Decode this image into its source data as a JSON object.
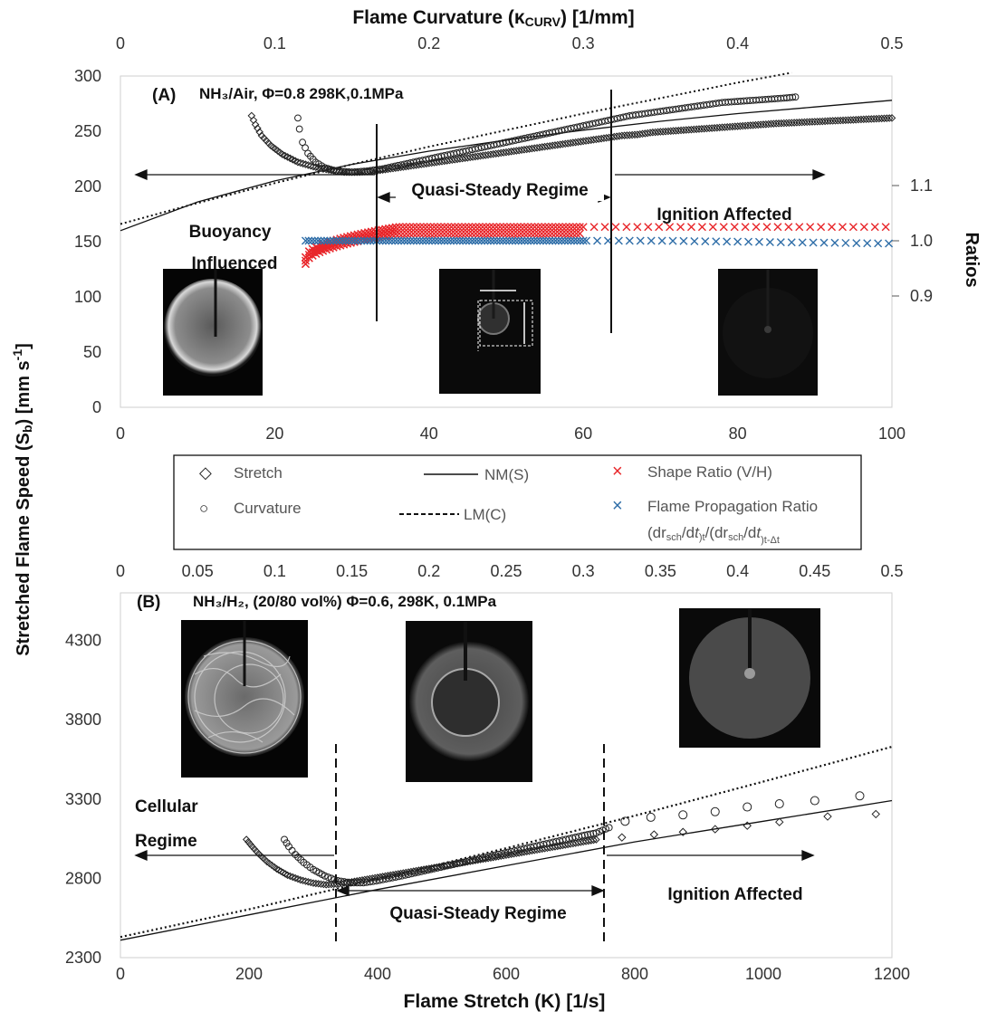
{
  "figure": {
    "top_axis_title": "Flame Curvature (κ",
    "top_axis_title_sub": "CURV",
    "top_axis_title_end": ") [1/mm]",
    "y_title": "Stretched Flame Speed (S",
    "y_title_sub": "b",
    "y_title_mid": ") [mm s",
    "y_title_sup": "-1",
    "y_title_end": "]",
    "x_title": "Flame Stretch (K) [1/s]",
    "right_title": "Ratios"
  },
  "legend": {
    "stretch": "Stretch",
    "curvature": "Curvature",
    "nm": "NM(S)",
    "lm": "LM(C)",
    "shape": "Shape Ratio (V/H)",
    "fpr": "Flame Propagation Ratio",
    "fpr_formula": "(dr_sch/dt)_t/(dr_sch/dt)_t-Δt",
    "marker_stretch": "◇",
    "marker_curv": "○",
    "marker_x": "×"
  },
  "colors": {
    "shape_ratio": "#e8262a",
    "propagation_ratio": "#2f6ea8",
    "data": "#222222"
  },
  "chart_data": [
    {
      "id": "A",
      "type": "scatter",
      "label": "(A)",
      "condition": "NH₃/Air, Φ=0.8 298K,0.1MPa",
      "xlabel": "",
      "ylabel": "Stretched Flame Speed (Sb) [mm s-1]",
      "xlim": [
        0,
        100
      ],
      "ylim": [
        0,
        300
      ],
      "x_ticks": [
        0,
        20,
        40,
        60,
        80,
        100
      ],
      "y_ticks": [
        0,
        50,
        100,
        150,
        200,
        250,
        300
      ],
      "top_axis": {
        "label": "Flame Curvature (κCURV) [1/mm]",
        "lim": [
          0,
          0.5
        ],
        "ticks": [
          "0",
          "0.1",
          "0.2",
          "0.3",
          "0.4",
          "0.5"
        ]
      },
      "right_axis": {
        "label": "Ratios",
        "ticks": [
          "0.9",
          "1.0",
          "1.1"
        ],
        "lim": [
          0.75,
          1.25
        ]
      },
      "grid": false,
      "regimes": [
        {
          "text": "Buoyancy",
          "text2": "Influenced"
        },
        {
          "text": "Quasi-Steady Regime"
        },
        {
          "text": "Ignition Affected"
        }
      ],
      "boundaries_x": [
        33,
        63.5
      ],
      "images": [
        {
          "name": "buoyancy-flame-image",
          "dim": "V",
          "dim2": "H"
        },
        {
          "name": "quasi-steady-flame-image"
        },
        {
          "name": "ignition-flame-image"
        }
      ],
      "stretch_points": [
        [
          17,
          264
        ],
        [
          17.5,
          256
        ],
        [
          18.3,
          246
        ],
        [
          19.5,
          237
        ],
        [
          21,
          229
        ],
        [
          23,
          222
        ],
        [
          25,
          218
        ],
        [
          27,
          215
        ],
        [
          29,
          213
        ],
        [
          31,
          213
        ],
        [
          33,
          214
        ],
        [
          35,
          216
        ],
        [
          37,
          218
        ],
        [
          39,
          220
        ],
        [
          41,
          222
        ],
        [
          43,
          224
        ],
        [
          45,
          226
        ],
        [
          47,
          228
        ],
        [
          49,
          230
        ],
        [
          51,
          232
        ],
        [
          53,
          234
        ],
        [
          55,
          236
        ],
        [
          57,
          238
        ],
        [
          59,
          240
        ],
        [
          61,
          242
        ],
        [
          63,
          244
        ],
        [
          65,
          246
        ],
        [
          67,
          247
        ],
        [
          69,
          249
        ],
        [
          71,
          250
        ],
        [
          73,
          251
        ],
        [
          75,
          252
        ],
        [
          77,
          253
        ],
        [
          79,
          254
        ],
        [
          81,
          255
        ],
        [
          83,
          256
        ],
        [
          85,
          257
        ],
        [
          88,
          258
        ],
        [
          91,
          259
        ],
        [
          94,
          260
        ],
        [
          97,
          261
        ],
        [
          100,
          262
        ]
      ],
      "curvature_points": [
        [
          23,
          262
        ],
        [
          23.2,
          252
        ],
        [
          23.6,
          240
        ],
        [
          24.3,
          230
        ],
        [
          25.3,
          222
        ],
        [
          26.5,
          217
        ],
        [
          28,
          214
        ],
        [
          30,
          213
        ],
        [
          32,
          214
        ],
        [
          34,
          216
        ],
        [
          36,
          219
        ],
        [
          38,
          222
        ],
        [
          40,
          225
        ],
        [
          42,
          228
        ],
        [
          44,
          231
        ],
        [
          46,
          234
        ],
        [
          48,
          237
        ],
        [
          50,
          240
        ],
        [
          52,
          243
        ],
        [
          54,
          246
        ],
        [
          56,
          249
        ],
        [
          58,
          252
        ],
        [
          60,
          255
        ],
        [
          62,
          258
        ],
        [
          64,
          261
        ],
        [
          66,
          264
        ],
        [
          68,
          266
        ],
        [
          70,
          268
        ],
        [
          72,
          270
        ],
        [
          74,
          272
        ],
        [
          76,
          274
        ],
        [
          78,
          276
        ],
        [
          80,
          277
        ],
        [
          82,
          278
        ],
        [
          84,
          279
        ],
        [
          86,
          280
        ],
        [
          87.5,
          281
        ]
      ],
      "nm_line": [
        [
          0,
          160
        ],
        [
          10,
          186
        ],
        [
          20,
          205
        ],
        [
          30,
          220
        ],
        [
          40,
          232
        ],
        [
          50,
          242
        ],
        [
          60,
          251
        ],
        [
          70,
          259
        ],
        [
          80,
          266
        ],
        [
          90,
          272
        ],
        [
          100,
          278
        ]
      ],
      "lm_line": [
        [
          0,
          166
        ],
        [
          10,
          185
        ],
        [
          20,
          203
        ],
        [
          30,
          220
        ],
        [
          40,
          236
        ],
        [
          50,
          251
        ],
        [
          60,
          266
        ],
        [
          70,
          280
        ],
        [
          80,
          294
        ],
        [
          87,
          303
        ]
      ],
      "shape_ratio": {
        "x_start": 24,
        "x_end": 100,
        "ramp_end": 36,
        "y_start": 0.97,
        "y_plateau": 1.025
      },
      "propagation_ratio": {
        "x_start": 24,
        "x_end": 100,
        "y": 1.0,
        "y_end": 0.995
      }
    },
    {
      "id": "B",
      "type": "scatter",
      "label": "(B)",
      "condition": "NH₃/H₂, (20/80 vol%) Φ=0.6, 298K, 0.1MPa",
      "xlabel": "Flame Stretch (K) [1/s]",
      "ylabel": "Stretched Flame Speed (Sb) [mm s-1]",
      "xlim": [
        0,
        1200
      ],
      "ylim": [
        2300,
        4600
      ],
      "x_ticks": [
        0,
        200,
        400,
        600,
        800,
        1000,
        1200
      ],
      "y_ticks": [
        2300,
        2800,
        3300,
        3800,
        4300
      ],
      "top_axis": {
        "label": "Flame Curvature (κCURV) [1/mm]",
        "lim": [
          0,
          0.5
        ],
        "ticks": [
          "0",
          "0.05",
          "0.1",
          "0.15",
          "0.2",
          "0.25",
          "0.3",
          "0.35",
          "0.4",
          "0.45",
          "0.5"
        ]
      },
      "grid": false,
      "regimes": [
        {
          "text": "Cellular",
          "text2": "Regime"
        },
        {
          "text": "Quasi-Steady Regime"
        },
        {
          "text": "Ignition Affected"
        }
      ],
      "boundaries_x": [
        330,
        760
      ],
      "images": [
        {
          "name": "cellular-flame-image"
        },
        {
          "name": "quasi-steady-flame-image-b"
        },
        {
          "name": "ignition-flame-image-b"
        }
      ],
      "stretch_points": [
        [
          196,
          3045
        ],
        [
          205,
          3000
        ],
        [
          215,
          2955
        ],
        [
          228,
          2905
        ],
        [
          243,
          2860
        ],
        [
          260,
          2820
        ],
        [
          280,
          2790
        ],
        [
          300,
          2770
        ],
        [
          320,
          2760
        ],
        [
          340,
          2765
        ],
        [
          360,
          2778
        ],
        [
          380,
          2792
        ],
        [
          400,
          2806
        ],
        [
          420,
          2820
        ],
        [
          440,
          2834
        ],
        [
          460,
          2848
        ],
        [
          480,
          2862
        ],
        [
          500,
          2876
        ],
        [
          520,
          2890
        ],
        [
          540,
          2904
        ],
        [
          560,
          2918
        ],
        [
          580,
          2932
        ],
        [
          600,
          2946
        ],
        [
          620,
          2960
        ],
        [
          640,
          2974
        ],
        [
          660,
          2988
        ],
        [
          680,
          3002
        ],
        [
          700,
          3016
        ],
        [
          720,
          3030
        ],
        [
          740,
          3044
        ],
        [
          780,
          3058
        ],
        [
          830,
          3076
        ],
        [
          875,
          3092
        ],
        [
          925,
          3110
        ],
        [
          975,
          3132
        ],
        [
          1025,
          3155
        ],
        [
          1100,
          3190
        ],
        [
          1175,
          3205
        ]
      ],
      "curvature_points": [
        [
          255,
          3045
        ],
        [
          262,
          3000
        ],
        [
          272,
          2950
        ],
        [
          285,
          2900
        ],
        [
          300,
          2855
        ],
        [
          318,
          2815
        ],
        [
          338,
          2785
        ],
        [
          358,
          2772
        ],
        [
          378,
          2772
        ],
        [
          398,
          2784
        ],
        [
          418,
          2800
        ],
        [
          438,
          2816
        ],
        [
          458,
          2834
        ],
        [
          478,
          2852
        ],
        [
          498,
          2870
        ],
        [
          518,
          2888
        ],
        [
          538,
          2906
        ],
        [
          558,
          2924
        ],
        [
          578,
          2942
        ],
        [
          598,
          2960
        ],
        [
          618,
          2978
        ],
        [
          638,
          2996
        ],
        [
          658,
          3014
        ],
        [
          678,
          3032
        ],
        [
          698,
          3050
        ],
        [
          718,
          3068
        ],
        [
          740,
          3086
        ],
        [
          760,
          3120
        ],
        [
          785,
          3160
        ],
        [
          825,
          3185
        ],
        [
          875,
          3200
        ],
        [
          925,
          3220
        ],
        [
          975,
          3250
        ],
        [
          1025,
          3270
        ],
        [
          1080,
          3290
        ],
        [
          1150,
          3320
        ]
      ],
      "nm_line": [
        [
          0,
          2410
        ],
        [
          200,
          2570
        ],
        [
          400,
          2730
        ],
        [
          600,
          2880
        ],
        [
          800,
          3030
        ],
        [
          1000,
          3160
        ],
        [
          1200,
          3290
        ]
      ],
      "lm_line": [
        [
          0,
          2430
        ],
        [
          200,
          2605
        ],
        [
          400,
          2795
        ],
        [
          600,
          2990
        ],
        [
          800,
          3195
        ],
        [
          1000,
          3410
        ],
        [
          1200,
          3630
        ]
      ]
    }
  ]
}
